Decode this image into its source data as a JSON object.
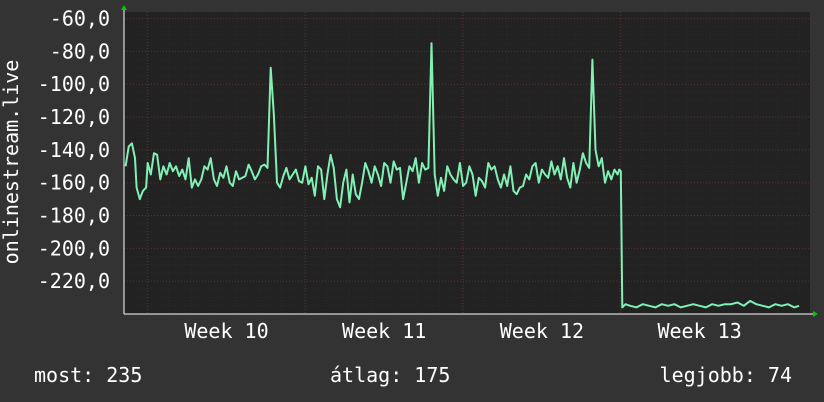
{
  "chart_data": {
    "type": "line",
    "ylabel": "onlinestream.live",
    "y_ticks": [
      "-60,0",
      "-80,0",
      "-100,0",
      "-120,0",
      "-140,0",
      "-160,0",
      "-180,0",
      "-200,0",
      "-220,0"
    ],
    "y_tick_values": [
      -60,
      -80,
      -100,
      -120,
      -140,
      -160,
      -180,
      -200,
      -220
    ],
    "x_ticks": [
      "Week 10",
      "Week 11",
      "Week 12",
      "Week 13"
    ],
    "x_tick_values": [
      10,
      11,
      12,
      13
    ],
    "xlim": [
      9.35,
      13.7
    ],
    "ylim": [
      -240,
      -56
    ],
    "grid": true,
    "colors": {
      "background": "#333333",
      "plot_background": "#222222",
      "grid_minor": "#2a2a2a",
      "grid_major": "#5a2f2f",
      "line": "#80f0b4",
      "axis": "#ffffff",
      "arrow": "#00cc00"
    },
    "series": [
      {
        "values": [
          [
            9.36,
            -150
          ],
          [
            9.38,
            -138
          ],
          [
            9.4,
            -136
          ],
          [
            9.42,
            -145
          ],
          [
            9.43,
            -163
          ],
          [
            9.45,
            -170
          ],
          [
            9.47,
            -165
          ],
          [
            9.49,
            -163
          ],
          [
            9.5,
            -148
          ],
          [
            9.52,
            -155
          ],
          [
            9.54,
            -142
          ],
          [
            9.56,
            -143
          ],
          [
            9.58,
            -158
          ],
          [
            9.6,
            -150
          ],
          [
            9.62,
            -155
          ],
          [
            9.64,
            -148
          ],
          [
            9.66,
            -153
          ],
          [
            9.68,
            -150
          ],
          [
            9.7,
            -156
          ],
          [
            9.72,
            -152
          ],
          [
            9.74,
            -158
          ],
          [
            9.76,
            -145
          ],
          [
            9.78,
            -163
          ],
          [
            9.8,
            -158
          ],
          [
            9.82,
            -162
          ],
          [
            9.84,
            -158
          ],
          [
            9.86,
            -150
          ],
          [
            9.88,
            -152
          ],
          [
            9.9,
            -145
          ],
          [
            9.92,
            -158
          ],
          [
            9.94,
            -162
          ],
          [
            9.96,
            -154
          ],
          [
            9.98,
            -157
          ],
          [
            10.0,
            -150
          ],
          [
            10.02,
            -160
          ],
          [
            10.04,
            -162
          ],
          [
            10.06,
            -153
          ],
          [
            10.08,
            -158
          ],
          [
            10.1,
            -157
          ],
          [
            10.12,
            -156
          ],
          [
            10.14,
            -149
          ],
          [
            10.16,
            -153
          ],
          [
            10.18,
            -158
          ],
          [
            10.2,
            -155
          ],
          [
            10.22,
            -150
          ],
          [
            10.24,
            -149
          ],
          [
            10.26,
            -151
          ],
          [
            10.28,
            -90
          ],
          [
            10.3,
            -118
          ],
          [
            10.32,
            -160
          ],
          [
            10.34,
            -163
          ],
          [
            10.36,
            -156
          ],
          [
            10.38,
            -151
          ],
          [
            10.4,
            -158
          ],
          [
            10.42,
            -155
          ],
          [
            10.44,
            -152
          ],
          [
            10.46,
            -159
          ],
          [
            10.48,
            -160
          ],
          [
            10.5,
            -150
          ],
          [
            10.52,
            -161
          ],
          [
            10.54,
            -157
          ],
          [
            10.56,
            -168
          ],
          [
            10.58,
            -150
          ],
          [
            10.6,
            -152
          ],
          [
            10.62,
            -170
          ],
          [
            10.64,
            -155
          ],
          [
            10.66,
            -143
          ],
          [
            10.68,
            -151
          ],
          [
            10.7,
            -170
          ],
          [
            10.72,
            -175
          ],
          [
            10.74,
            -160
          ],
          [
            10.76,
            -152
          ],
          [
            10.78,
            -172
          ],
          [
            10.8,
            -155
          ],
          [
            10.82,
            -167
          ],
          [
            10.84,
            -170
          ],
          [
            10.86,
            -160
          ],
          [
            10.88,
            -148
          ],
          [
            10.9,
            -153
          ],
          [
            10.92,
            -160
          ],
          [
            10.94,
            -150
          ],
          [
            10.96,
            -155
          ],
          [
            10.98,
            -162
          ],
          [
            11.0,
            -148
          ],
          [
            11.02,
            -150
          ],
          [
            11.04,
            -160
          ],
          [
            11.06,
            -147
          ],
          [
            11.08,
            -152
          ],
          [
            11.1,
            -151
          ],
          [
            11.12,
            -170
          ],
          [
            11.14,
            -160
          ],
          [
            11.16,
            -150
          ],
          [
            11.18,
            -153
          ],
          [
            11.2,
            -145
          ],
          [
            11.22,
            -160
          ],
          [
            11.24,
            -148
          ],
          [
            11.26,
            -152
          ],
          [
            11.28,
            -151
          ],
          [
            11.3,
            -75
          ],
          [
            11.32,
            -155
          ],
          [
            11.34,
            -168
          ],
          [
            11.36,
            -157
          ],
          [
            11.38,
            -165
          ],
          [
            11.4,
            -150
          ],
          [
            11.42,
            -155
          ],
          [
            11.44,
            -158
          ],
          [
            11.46,
            -160
          ],
          [
            11.48,
            -148
          ],
          [
            11.5,
            -162
          ],
          [
            11.52,
            -160
          ],
          [
            11.54,
            -150
          ],
          [
            11.56,
            -155
          ],
          [
            11.58,
            -168
          ],
          [
            11.6,
            -157
          ],
          [
            11.62,
            -159
          ],
          [
            11.64,
            -163
          ],
          [
            11.66,
            -148
          ],
          [
            11.68,
            -152
          ],
          [
            11.7,
            -150
          ],
          [
            11.72,
            -158
          ],
          [
            11.74,
            -163
          ],
          [
            11.76,
            -155
          ],
          [
            11.78,
            -162
          ],
          [
            11.8,
            -150
          ],
          [
            11.82,
            -165
          ],
          [
            11.84,
            -167
          ],
          [
            11.86,
            -163
          ],
          [
            11.88,
            -162
          ],
          [
            11.9,
            -155
          ],
          [
            11.92,
            -158
          ],
          [
            11.94,
            -150
          ],
          [
            11.96,
            -148
          ],
          [
            11.98,
            -160
          ],
          [
            12.0,
            -152
          ],
          [
            12.02,
            -155
          ],
          [
            12.04,
            -157
          ],
          [
            12.06,
            -147
          ],
          [
            12.08,
            -155
          ],
          [
            12.1,
            -150
          ],
          [
            12.12,
            -158
          ],
          [
            12.14,
            -145
          ],
          [
            12.16,
            -157
          ],
          [
            12.18,
            -163
          ],
          [
            12.2,
            -148
          ],
          [
            12.22,
            -160
          ],
          [
            12.24,
            -152
          ],
          [
            12.26,
            -142
          ],
          [
            12.28,
            -148
          ],
          [
            12.3,
            -151
          ],
          [
            12.32,
            -85
          ],
          [
            12.34,
            -140
          ],
          [
            12.36,
            -150
          ],
          [
            12.38,
            -145
          ],
          [
            12.4,
            -160
          ],
          [
            12.42,
            -153
          ],
          [
            12.44,
            -158
          ],
          [
            12.46,
            -152
          ],
          [
            12.48,
            -155
          ],
          [
            12.49,
            -152
          ],
          [
            12.5,
            -153
          ],
          [
            12.51,
            -236
          ],
          [
            12.53,
            -234
          ],
          [
            12.56,
            -235
          ],
          [
            12.6,
            -236
          ],
          [
            12.64,
            -234
          ],
          [
            12.68,
            -235
          ],
          [
            12.72,
            -236
          ],
          [
            12.76,
            -234
          ],
          [
            12.8,
            -235
          ],
          [
            12.84,
            -234
          ],
          [
            12.88,
            -236
          ],
          [
            12.92,
            -235
          ],
          [
            12.96,
            -234
          ],
          [
            13.0,
            -235
          ],
          [
            13.04,
            -236
          ],
          [
            13.08,
            -234
          ],
          [
            13.12,
            -235
          ],
          [
            13.16,
            -234
          ],
          [
            13.2,
            -234
          ],
          [
            13.24,
            -233
          ],
          [
            13.28,
            -235
          ],
          [
            13.32,
            -232
          ],
          [
            13.36,
            -234
          ],
          [
            13.4,
            -235
          ],
          [
            13.44,
            -236
          ],
          [
            13.48,
            -234
          ],
          [
            13.52,
            -235
          ],
          [
            13.56,
            -234
          ],
          [
            13.6,
            -236
          ],
          [
            13.63,
            -235
          ]
        ]
      }
    ]
  },
  "stats": {
    "current_label": "most:",
    "current_value": "235",
    "average_label": "átlag:",
    "average_value": "175",
    "best_label": "legjobb:",
    "best_value": "74"
  }
}
